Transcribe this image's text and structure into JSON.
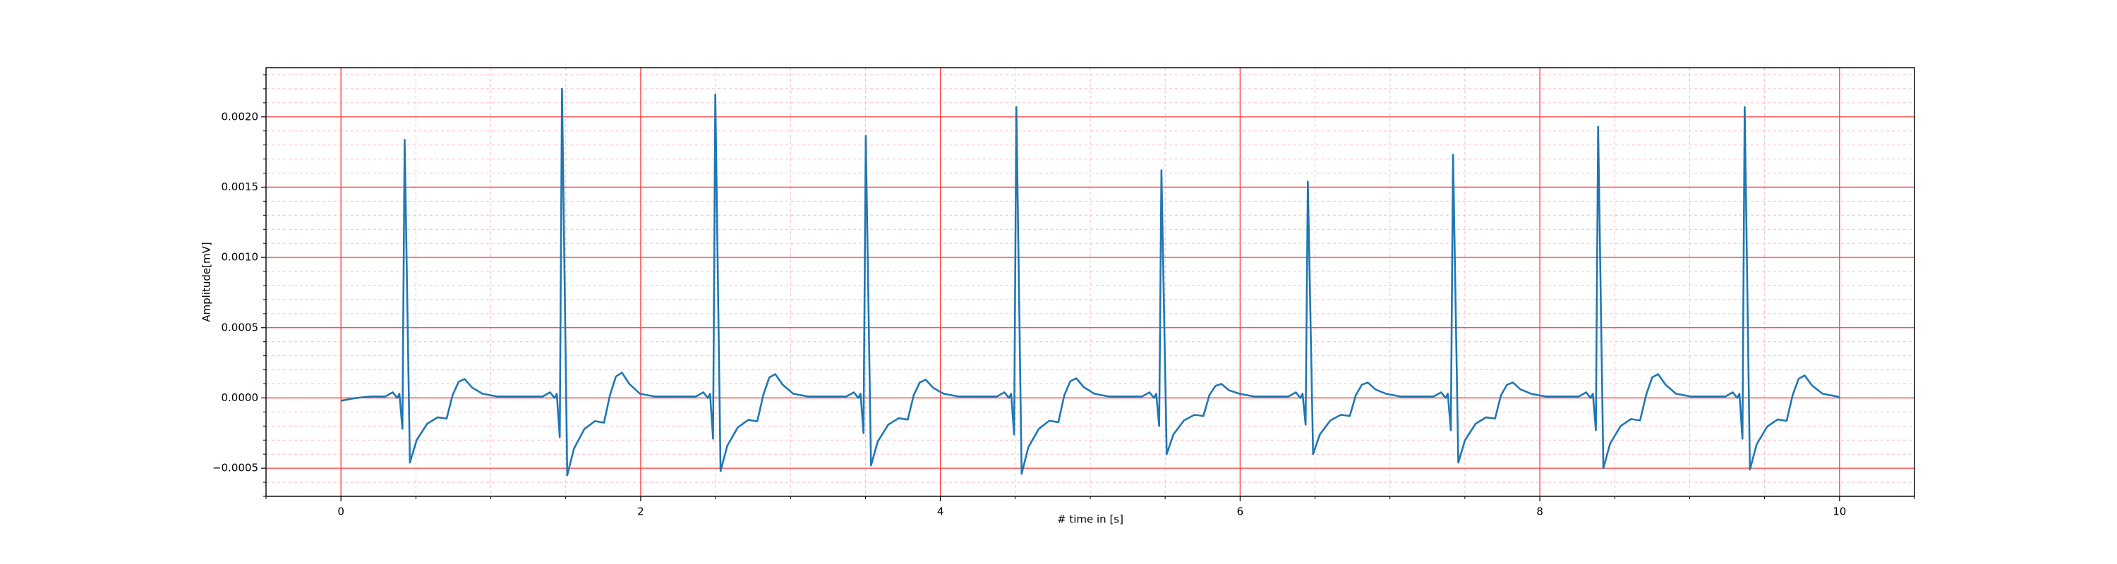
{
  "chart_data": {
    "type": "line",
    "xlabel": "# time in [s]",
    "ylabel": "Amplitude[mV]",
    "xlim": [
      -0.5,
      10.5
    ],
    "ylim": [
      -0.0007,
      0.00235
    ],
    "xticks": [
      0,
      2,
      4,
      6,
      8,
      10
    ],
    "yticks": [
      {
        "value": -0.0005,
        "label": "−0.0005"
      },
      {
        "value": 0,
        "label": "0.0000"
      },
      {
        "value": 0.0005,
        "label": "0.0005"
      },
      {
        "value": 0.001,
        "label": "0.0010"
      },
      {
        "value": 0.0015,
        "label": "0.0015"
      },
      {
        "value": 0.002,
        "label": "0.0020"
      }
    ],
    "xminorticks": [
      -0.5,
      0.5,
      1,
      1.5,
      2.5,
      3,
      3.5,
      4.5,
      5,
      5.5,
      6.5,
      7,
      7.5,
      8.5,
      9,
      9.5,
      10.5
    ],
    "yminorticks": [
      -0.0007,
      -0.0006,
      -0.0004,
      -0.0003,
      -0.0002,
      -0.0001,
      0.0001,
      0.0002,
      0.0003,
      0.0004,
      0.0006,
      0.0007,
      0.0008,
      0.0009,
      0.0011,
      0.0012,
      0.0013,
      0.0014,
      0.0016,
      0.0017,
      0.0018,
      0.0019,
      0.0021,
      0.0022,
      0.0023
    ],
    "grid": true,
    "major_grid_color": "#ff3b3b",
    "minor_grid_color": "#ffb6c8",
    "series": [
      {
        "color": "#1f77b4",
        "x": [
          0,
          0.1,
          0.2,
          0.295,
          0.345,
          0.375,
          0.39,
          0.41,
          0.425,
          0.46,
          0.505,
          0.575,
          0.645,
          0.705,
          0.745,
          0.785,
          0.825,
          0.875,
          0.945,
          1.045,
          1.345,
          1.395,
          1.425,
          1.44,
          1.46,
          1.475,
          1.51,
          1.555,
          1.625,
          1.695,
          1.755,
          1.795,
          1.835,
          1.875,
          1.925,
          1.995,
          2.095,
          2.368,
          2.418,
          2.448,
          2.463,
          2.483,
          2.498,
          2.533,
          2.578,
          2.648,
          2.718,
          2.778,
          2.818,
          2.858,
          2.898,
          2.948,
          3.018,
          3.118,
          3.372,
          3.422,
          3.452,
          3.467,
          3.487,
          3.502,
          3.537,
          3.582,
          3.652,
          3.722,
          3.782,
          3.822,
          3.862,
          3.902,
          3.952,
          4.022,
          4.122,
          4.377,
          4.427,
          4.457,
          4.472,
          4.492,
          4.507,
          4.542,
          4.587,
          4.657,
          4.727,
          4.787,
          4.827,
          4.867,
          4.907,
          4.957,
          5.027,
          5.127,
          5.345,
          5.395,
          5.425,
          5.44,
          5.46,
          5.475,
          5.51,
          5.555,
          5.625,
          5.695,
          5.755,
          5.795,
          5.835,
          5.875,
          5.925,
          5.995,
          6.095,
          6.322,
          6.372,
          6.402,
          6.417,
          6.437,
          6.452,
          6.487,
          6.532,
          6.602,
          6.672,
          6.732,
          6.772,
          6.812,
          6.852,
          6.902,
          6.972,
          7.072,
          7.291,
          7.341,
          7.371,
          7.386,
          7.406,
          7.421,
          7.456,
          7.501,
          7.571,
          7.641,
          7.701,
          7.741,
          7.781,
          7.821,
          7.871,
          7.941,
          8.041,
          8.259,
          8.309,
          8.339,
          8.354,
          8.374,
          8.389,
          8.424,
          8.469,
          8.539,
          8.609,
          8.669,
          8.709,
          8.749,
          8.789,
          8.839,
          8.909,
          9.009,
          9.237,
          9.287,
          9.317,
          9.332,
          9.352,
          9.367,
          9.402,
          9.447,
          9.517,
          9.587,
          9.647,
          9.687,
          9.727,
          9.767,
          9.817,
          9.887,
          9.987,
          10.0
        ],
        "values": [
          -2e-05,
          0,
          1e-05,
          1e-05,
          4e-05,
          0,
          3e-05,
          -0.00022,
          0.001836,
          -0.00046,
          -0.0003,
          -0.000184,
          -0.000138,
          -0.000147,
          2e-05,
          0.000115,
          0.000135,
          7.4e-05,
          3e-05,
          1e-05,
          1e-05,
          4e-05,
          0,
          3e-05,
          -0.00028,
          0.0022,
          -0.00055,
          -0.00036,
          -0.00022,
          -0.000165,
          -0.000176,
          2e-05,
          0.000153,
          0.00018,
          9.9e-05,
          3e-05,
          1e-05,
          1e-05,
          4e-05,
          0,
          3e-05,
          -0.00029,
          0.00216,
          -0.00052,
          -0.00034,
          -0.00021,
          -0.000156,
          -0.000166,
          2e-05,
          0.000145,
          0.00017,
          9.4e-05,
          3e-05,
          1e-05,
          1e-05,
          4e-05,
          0,
          3e-05,
          -0.00025,
          0.001865,
          -0.00048,
          -0.00031,
          -0.00019,
          -0.000144,
          -0.000154,
          2e-05,
          0.00011,
          0.00013,
          7.2e-05,
          3e-05,
          1e-05,
          1e-05,
          4e-05,
          0,
          3e-05,
          -0.00026,
          0.00207,
          -0.00054,
          -0.00035,
          -0.00022,
          -0.000162,
          -0.000173,
          2e-05,
          0.000119,
          0.00014,
          7.7e-05,
          3e-05,
          1e-05,
          1e-05,
          4e-05,
          0,
          3e-05,
          -0.0002,
          0.00162,
          -0.0004,
          -0.00026,
          -0.00016,
          -0.00012,
          -0.000128,
          2e-05,
          8.5e-05,
          0.0001,
          5.5e-05,
          3e-05,
          1e-05,
          1e-05,
          4e-05,
          0,
          3e-05,
          -0.00019,
          0.00154,
          -0.0004,
          -0.00026,
          -0.00016,
          -0.00012,
          -0.000128,
          2e-05,
          9.4e-05,
          0.00011,
          6.1e-05,
          3e-05,
          1e-05,
          1e-05,
          4e-05,
          0,
          3e-05,
          -0.00023,
          0.00173,
          -0.00046,
          -0.0003,
          -0.000184,
          -0.000138,
          -0.000147,
          2e-05,
          9.4e-05,
          0.00011,
          6.1e-05,
          3e-05,
          1e-05,
          1e-05,
          4e-05,
          0,
          3e-05,
          -0.00023,
          0.00193,
          -0.0005,
          -0.000325,
          -0.0002,
          -0.00015,
          -0.00016,
          2e-05,
          0.000145,
          0.00017,
          9.4e-05,
          3e-05,
          1e-05,
          1e-05,
          4e-05,
          0,
          3e-05,
          -0.00029,
          0.00207,
          -0.00051,
          -0.00033,
          -0.000204,
          -0.000153,
          -0.000163,
          2e-05,
          0.000136,
          0.00016,
          8.8e-05,
          3e-05,
          1e-05,
          0
        ]
      }
    ]
  }
}
